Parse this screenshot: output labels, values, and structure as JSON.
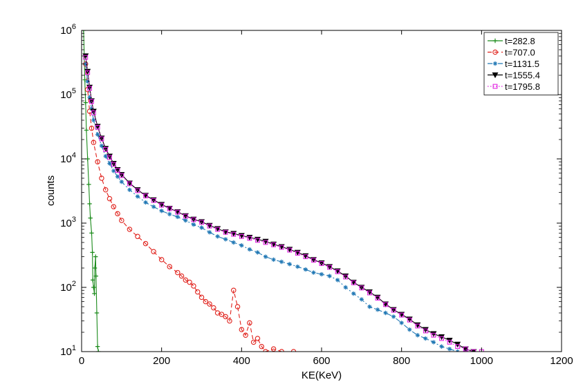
{
  "chart_data": {
    "type": "line",
    "title": "",
    "xlabel": "KE(KeV)",
    "ylabel": "counts",
    "xlim": [
      0,
      1200
    ],
    "ylim": [
      10,
      1000000
    ],
    "yscale": "log",
    "grid": false,
    "legend_position": "top-right",
    "xticks": [
      0,
      200,
      400,
      600,
      800,
      1000,
      1200
    ],
    "yticks": [
      {
        "base": "10",
        "exp": "1",
        "value": 10
      },
      {
        "base": "10",
        "exp": "2",
        "value": 100
      },
      {
        "base": "10",
        "exp": "3",
        "value": 1000
      },
      {
        "base": "10",
        "exp": "4",
        "value": 10000
      },
      {
        "base": "10",
        "exp": "5",
        "value": 100000
      },
      {
        "base": "10",
        "exp": "6",
        "value": 1000000
      }
    ],
    "series": [
      {
        "name": "t=282.8",
        "color": "#1a8a1a",
        "marker": "plus",
        "dash": "solid",
        "x": [
          5,
          8,
          10,
          12,
          15,
          18,
          20,
          22,
          25,
          27,
          28,
          30,
          32,
          33,
          35,
          36,
          38,
          40,
          42
        ],
        "y": [
          1000000,
          170000,
          75000,
          28000,
          10000,
          4000,
          2000,
          1200,
          700,
          350,
          130,
          100,
          80,
          200,
          300,
          150,
          40,
          12,
          10
        ]
      },
      {
        "name": "t=707.0",
        "color": "#e0201a",
        "marker": "circle",
        "dash": "dashed",
        "x": [
          10,
          15,
          20,
          25,
          30,
          40,
          50,
          60,
          70,
          80,
          90,
          100,
          120,
          140,
          160,
          180,
          200,
          220,
          240,
          250,
          260,
          270,
          280,
          290,
          300,
          310,
          320,
          330,
          340,
          350,
          360,
          370,
          380,
          390,
          400,
          410,
          420,
          430,
          440,
          450,
          460,
          480,
          500,
          530
        ],
        "y": [
          300000,
          120000,
          55000,
          30000,
          18000,
          9000,
          5000,
          3300,
          2400,
          1800,
          1400,
          1100,
          800,
          620,
          480,
          360,
          270,
          210,
          170,
          150,
          130,
          120,
          105,
          85,
          70,
          60,
          55,
          48,
          40,
          38,
          35,
          30,
          90,
          50,
          22,
          18,
          28,
          14,
          16,
          12,
          10,
          11,
          10,
          10
        ]
      },
      {
        "name": "t=1131.5",
        "color": "#1f77b4",
        "marker": "star",
        "dash": "dashdot",
        "x": [
          10,
          15,
          20,
          25,
          30,
          40,
          50,
          60,
          70,
          80,
          90,
          100,
          120,
          140,
          160,
          180,
          200,
          220,
          240,
          260,
          280,
          300,
          320,
          340,
          360,
          380,
          400,
          420,
          440,
          460,
          480,
          500,
          520,
          540,
          560,
          580,
          600,
          620,
          640,
          660,
          680,
          700,
          720,
          740,
          760,
          780,
          800,
          820,
          840,
          860,
          880,
          900,
          920,
          940,
          960
        ],
        "y": [
          300000,
          160000,
          90000,
          60000,
          40000,
          24000,
          16000,
          11000,
          8500,
          6500,
          5300,
          4400,
          3300,
          2600,
          2100,
          1800,
          1550,
          1380,
          1250,
          1100,
          950,
          850,
          720,
          620,
          560,
          500,
          450,
          390,
          350,
          300,
          270,
          250,
          230,
          210,
          190,
          170,
          160,
          150,
          130,
          100,
          80,
          65,
          50,
          45,
          40,
          35,
          28,
          22,
          18,
          16,
          14,
          12,
          11,
          10,
          10
        ]
      },
      {
        "name": "t=1555.4",
        "color": "#000000",
        "marker": "triangle-down",
        "dash": "solid",
        "x": [
          10,
          15,
          20,
          25,
          30,
          40,
          50,
          60,
          70,
          80,
          90,
          100,
          120,
          140,
          160,
          180,
          200,
          220,
          240,
          260,
          280,
          300,
          320,
          340,
          360,
          380,
          400,
          420,
          440,
          460,
          480,
          500,
          520,
          540,
          560,
          580,
          600,
          620,
          640,
          660,
          680,
          700,
          720,
          740,
          760,
          780,
          800,
          820,
          840,
          860,
          880,
          900,
          920,
          940,
          960,
          980
        ],
        "y": [
          400000,
          230000,
          130000,
          80000,
          55000,
          32000,
          21000,
          14500,
          11000,
          8500,
          6800,
          5700,
          4200,
          3300,
          2700,
          2300,
          1950,
          1700,
          1500,
          1300,
          1150,
          1050,
          920,
          820,
          730,
          690,
          640,
          600,
          560,
          520,
          470,
          430,
          390,
          350,
          310,
          270,
          240,
          210,
          180,
          150,
          120,
          100,
          85,
          70,
          55,
          45,
          38,
          32,
          26,
          22,
          19,
          17,
          15,
          13,
          11,
          10
        ]
      },
      {
        "name": "t=1795.8",
        "color": "#e020e0",
        "marker": "square",
        "dash": "dotted",
        "x": [
          10,
          15,
          20,
          25,
          30,
          40,
          50,
          60,
          70,
          80,
          90,
          100,
          120,
          140,
          160,
          180,
          200,
          220,
          240,
          260,
          280,
          300,
          320,
          340,
          360,
          380,
          400,
          420,
          440,
          460,
          480,
          500,
          520,
          540,
          560,
          580,
          600,
          620,
          640,
          660,
          680,
          700,
          720,
          740,
          760,
          780,
          800,
          820,
          840,
          860,
          880,
          900,
          920,
          940,
          960,
          980,
          1000
        ],
        "y": [
          380000,
          220000,
          125000,
          78000,
          52000,
          31000,
          20500,
          14000,
          10500,
          8200,
          6600,
          5500,
          4100,
          3200,
          2650,
          2250,
          1900,
          1680,
          1480,
          1280,
          1130,
          1030,
          900,
          800,
          720,
          670,
          620,
          580,
          540,
          500,
          460,
          420,
          380,
          340,
          300,
          265,
          235,
          205,
          175,
          145,
          118,
          98,
          82,
          68,
          54,
          44,
          37,
          31,
          25,
          21,
          18,
          16,
          14,
          12,
          11,
          10,
          10
        ]
      }
    ]
  }
}
